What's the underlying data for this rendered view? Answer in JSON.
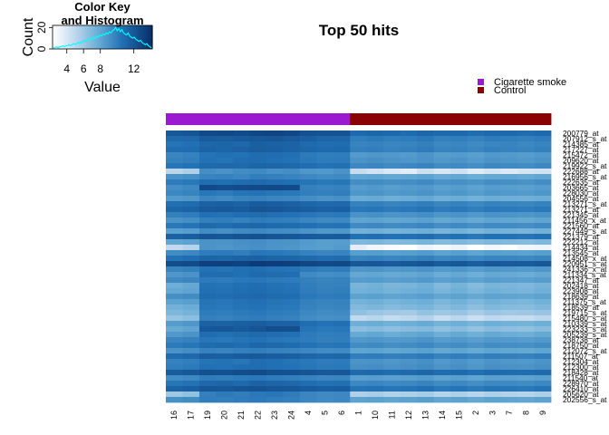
{
  "chart_data": {
    "type": "heatmap",
    "title": "Top 50 hits",
    "color_key": {
      "title_lines": [
        "Color Key",
        "and Histogram"
      ],
      "xlabel": "Value",
      "ylabel": "Count",
      "x_ticks": [
        4,
        6,
        8,
        12
      ],
      "y_ticks": [
        0,
        20
      ],
      "x_range": [
        2.3,
        14.2
      ],
      "y_range": [
        0,
        22
      ],
      "histogram_color": "#00ffff",
      "histogram_counts": [
        1,
        1,
        2,
        1,
        2,
        2,
        3,
        2,
        3,
        3,
        4,
        3,
        4,
        5,
        4,
        5,
        6,
        5,
        7,
        6,
        8,
        7,
        9,
        8,
        10,
        9,
        11,
        10,
        12,
        11,
        13,
        12,
        14,
        13,
        15,
        14,
        16,
        15,
        17,
        18,
        20,
        17,
        19,
        16,
        18,
        15,
        14,
        13,
        15,
        12,
        11,
        10,
        11,
        9,
        8,
        7,
        8,
        6,
        5,
        4,
        5,
        3,
        2,
        1
      ],
      "low_color": "#ffffff",
      "high_color": "#08306b"
    },
    "legend": {
      "placement": "top-right",
      "entries": [
        {
          "label": "Cigarette smoke",
          "color": "#9b19d0"
        },
        {
          "label": "Control",
          "color": "#8b0000"
        }
      ]
    },
    "columns": [
      "16",
      "17",
      "19",
      "20",
      "21",
      "22",
      "23",
      "24",
      "4",
      "5",
      "6",
      "1",
      "10",
      "11",
      "12",
      "13",
      "14",
      "15",
      "2",
      "3",
      "7",
      "8",
      "9"
    ],
    "column_groups": [
      "Cigarette smoke",
      "Cigarette smoke",
      "Cigarette smoke",
      "Cigarette smoke",
      "Cigarette smoke",
      "Cigarette smoke",
      "Cigarette smoke",
      "Cigarette smoke",
      "Cigarette smoke",
      "Cigarette smoke",
      "Cigarette smoke",
      "Control",
      "Control",
      "Control",
      "Control",
      "Control",
      "Control",
      "Control",
      "Control",
      "Control",
      "Control",
      "Control",
      "Control"
    ],
    "rows": [
      "200779_at",
      "207912_s_at",
      "214385_at",
      "217227_at",
      "215472_at",
      "209620_at",
      "219922_s_at",
      "222688_at",
      "216956_s_at",
      "222635_at",
      "203665_at",
      "228030_at",
      "204556_at",
      "213271_s_at",
      "213271_at",
      "221345_at",
      "211456_x_at",
      "221560_at",
      "227449_s_at",
      "221379_at",
      "222212_at",
      "214434_at",
      "213545_at",
      "214508_x_at",
      "220951_s_at",
      "241336_x_at",
      "211334_s_at",
      "221347_at",
      "202418_at",
      "223908_at",
      "218639_at",
      "211375_s_at",
      "218539_at",
      "219715_s_at",
      "215480_s_at",
      "210339_s_at",
      "223233_s_at",
      "205239_s_at",
      "238738_at",
      "218750_at",
      "212072_s_at",
      "211507_at",
      "212304_at",
      "212300_at",
      "218428_at",
      "211540_at",
      "228970_at",
      "226410_at",
      "205620_at",
      "202556_s_at"
    ],
    "values": [
      [
        12.0,
        12.2,
        12.8,
        12.9,
        12.7,
        13.0,
        13.1,
        12.9,
        12.4,
        12.3,
        12.3,
        11.0,
        11.2,
        11.1,
        10.9,
        11.2,
        11.0,
        11.1,
        10.8,
        11.0,
        11.1,
        10.9,
        11.0
      ],
      [
        11.0,
        11.1,
        11.8,
        11.7,
        11.9,
        12.0,
        12.1,
        11.9,
        11.6,
        11.3,
        11.2,
        10.0,
        10.2,
        10.0,
        10.1,
        10.3,
        9.9,
        10.0,
        9.8,
        10.1,
        10.0,
        9.9,
        10.1
      ],
      [
        10.5,
        10.7,
        11.2,
        11.3,
        11.1,
        11.6,
        11.5,
        11.4,
        11.0,
        10.8,
        10.9,
        9.7,
        9.8,
        9.6,
        9.7,
        9.9,
        9.5,
        9.6,
        9.4,
        9.6,
        9.7,
        9.5,
        9.7
      ],
      [
        10.8,
        10.9,
        11.4,
        11.3,
        11.5,
        11.7,
        11.6,
        11.4,
        11.2,
        11.0,
        11.1,
        9.9,
        10.0,
        9.8,
        9.9,
        10.1,
        9.7,
        9.8,
        9.6,
        9.9,
        9.8,
        9.7,
        9.9
      ],
      [
        9.6,
        9.8,
        10.5,
        10.7,
        10.6,
        10.9,
        10.8,
        10.7,
        10.2,
        10.0,
        10.1,
        8.6,
        8.8,
        8.7,
        8.6,
        8.9,
        8.5,
        8.6,
        8.4,
        8.7,
        8.6,
        8.5,
        8.7
      ],
      [
        9.8,
        10.0,
        10.6,
        10.5,
        10.8,
        10.9,
        10.7,
        10.6,
        10.3,
        10.1,
        10.2,
        8.9,
        9.1,
        8.9,
        8.8,
        9.0,
        8.7,
        8.9,
        8.6,
        8.9,
        8.8,
        8.7,
        8.9
      ],
      [
        10.4,
        10.6,
        11.0,
        11.1,
        11.0,
        11.3,
        11.2,
        11.1,
        10.8,
        10.6,
        10.7,
        9.5,
        9.6,
        9.4,
        9.5,
        9.7,
        9.3,
        9.4,
        9.2,
        9.5,
        9.4,
        9.3,
        9.5
      ],
      [
        5.0,
        5.5,
        9.2,
        9.0,
        9.3,
        9.4,
        9.1,
        9.2,
        8.8,
        8.7,
        8.9,
        4.6,
        4.2,
        3.8,
        3.5,
        4.4,
        3.9,
        4.3,
        3.6,
        4.1,
        3.7,
        4.0,
        4.2
      ],
      [
        8.9,
        9.1,
        9.7,
        9.8,
        9.6,
        10.0,
        9.9,
        9.7,
        9.5,
        9.3,
        9.4,
        8.0,
        8.1,
        7.9,
        8.0,
        8.2,
        7.8,
        8.0,
        7.7,
        7.9,
        8.0,
        7.8,
        8.0
      ],
      [
        10.1,
        10.3,
        10.8,
        10.7,
        10.9,
        11.0,
        10.8,
        10.7,
        10.5,
        10.3,
        10.4,
        9.2,
        9.3,
        9.1,
        9.2,
        9.4,
        9.0,
        9.1,
        8.9,
        9.2,
        9.1,
        9.0,
        9.2
      ],
      [
        9.2,
        9.5,
        12.8,
        12.6,
        12.7,
        12.8,
        12.9,
        12.7,
        9.9,
        9.7,
        9.8,
        8.5,
        8.7,
        8.4,
        8.6,
        8.7,
        8.3,
        8.5,
        8.2,
        8.5,
        8.4,
        8.3,
        8.5
      ],
      [
        9.5,
        9.7,
        10.4,
        10.2,
        10.5,
        10.6,
        10.4,
        10.3,
        10.0,
        9.9,
        10.0,
        8.8,
        8.9,
        8.7,
        8.8,
        9.0,
        8.6,
        8.8,
        8.5,
        8.8,
        8.7,
        8.6,
        8.8
      ],
      [
        8.6,
        8.8,
        9.6,
        9.4,
        9.7,
        9.8,
        9.6,
        9.5,
        9.2,
        9.0,
        9.1,
        7.7,
        7.8,
        7.6,
        7.7,
        7.9,
        7.5,
        7.7,
        7.4,
        7.7,
        7.6,
        7.5,
        7.7
      ],
      [
        10.7,
        10.9,
        11.5,
        11.6,
        11.4,
        11.8,
        11.7,
        11.5,
        11.2,
        11.0,
        11.1,
        9.8,
        9.9,
        9.7,
        9.8,
        10.0,
        9.6,
        9.8,
        9.5,
        9.8,
        9.7,
        9.6,
        9.8
      ],
      [
        11.2,
        11.4,
        11.9,
        12.0,
        11.8,
        12.2,
        12.1,
        11.9,
        11.7,
        11.5,
        11.6,
        10.3,
        10.4,
        10.2,
        10.3,
        10.5,
        10.1,
        10.3,
        10.0,
        10.3,
        10.2,
        10.1,
        10.3
      ],
      [
        9.9,
        10.1,
        10.7,
        10.6,
        10.8,
        10.9,
        10.7,
        10.6,
        10.4,
        10.2,
        10.3,
        9.0,
        9.1,
        8.9,
        9.0,
        9.2,
        8.8,
        9.0,
        8.7,
        9.0,
        8.9,
        8.8,
        9.0
      ],
      [
        9.0,
        9.2,
        9.9,
        10.0,
        9.8,
        10.1,
        10.0,
        9.9,
        9.6,
        9.4,
        9.5,
        8.1,
        8.2,
        8.0,
        8.1,
        8.3,
        7.9,
        8.1,
        7.8,
        8.1,
        8.0,
        7.9,
        8.1
      ],
      [
        10.3,
        10.5,
        11.0,
        10.9,
        11.1,
        11.2,
        11.0,
        10.9,
        10.7,
        10.5,
        10.6,
        9.4,
        9.5,
        9.3,
        9.4,
        9.6,
        9.2,
        9.4,
        9.1,
        9.4,
        9.3,
        9.2,
        9.4
      ],
      [
        8.3,
        8.5,
        9.3,
        9.1,
        9.4,
        9.5,
        9.3,
        9.2,
        8.9,
        8.7,
        8.8,
        7.4,
        7.5,
        7.3,
        7.4,
        7.6,
        7.2,
        7.4,
        7.1,
        7.4,
        7.3,
        7.2,
        7.4
      ],
      [
        11.5,
        11.7,
        12.2,
        12.1,
        12.3,
        12.4,
        12.2,
        12.1,
        11.9,
        11.8,
        11.9,
        10.7,
        10.8,
        10.6,
        10.7,
        10.9,
        10.5,
        10.7,
        10.4,
        10.7,
        10.6,
        10.5,
        10.7
      ],
      [
        8.0,
        8.2,
        9.0,
        8.9,
        9.1,
        9.2,
        9.0,
        8.9,
        8.6,
        8.4,
        8.5,
        7.0,
        7.1,
        6.9,
        7.0,
        7.2,
        6.8,
        7.0,
        6.7,
        7.0,
        6.9,
        6.8,
        7.0
      ],
      [
        4.8,
        5.2,
        8.9,
        8.8,
        9.0,
        9.1,
        8.9,
        8.8,
        8.5,
        8.4,
        8.6,
        3.4,
        2.9,
        2.6,
        2.4,
        3.0,
        2.7,
        3.1,
        2.3,
        2.8,
        2.5,
        2.9,
        3.0
      ],
      [
        9.3,
        9.5,
        10.1,
        10.2,
        10.0,
        10.4,
        10.3,
        10.1,
        9.8,
        9.6,
        9.7,
        8.4,
        8.5,
        8.3,
        8.4,
        8.6,
        8.2,
        8.4,
        8.1,
        8.4,
        8.3,
        8.2,
        8.4
      ],
      [
        10.6,
        10.8,
        11.3,
        11.2,
        11.4,
        11.5,
        11.3,
        11.2,
        11.0,
        10.8,
        10.9,
        9.7,
        9.8,
        9.6,
        9.7,
        9.9,
        9.5,
        9.7,
        9.4,
        9.7,
        9.6,
        9.5,
        9.7
      ],
      [
        12.6,
        12.7,
        13.3,
        13.4,
        13.2,
        13.6,
        13.5,
        13.3,
        13.0,
        12.8,
        12.9,
        12.0,
        12.1,
        11.9,
        12.0,
        12.2,
        11.8,
        12.0,
        11.7,
        12.0,
        11.9,
        11.8,
        12.0
      ],
      [
        9.7,
        9.9,
        10.6,
        10.5,
        10.7,
        10.8,
        10.6,
        10.5,
        10.2,
        10.0,
        10.1,
        8.8,
        8.9,
        8.7,
        8.8,
        9.0,
        8.6,
        8.8,
        8.5,
        8.8,
        8.7,
        8.6,
        8.8
      ],
      [
        8.8,
        9.0,
        10.8,
        10.9,
        10.7,
        11.0,
        10.9,
        10.8,
        9.4,
        9.2,
        9.3,
        7.9,
        8.0,
        7.8,
        7.9,
        8.1,
        7.7,
        7.9,
        7.6,
        7.9,
        7.8,
        7.7,
        7.9
      ],
      [
        9.4,
        9.6,
        10.2,
        10.1,
        10.3,
        10.4,
        10.2,
        10.1,
        9.9,
        9.7,
        9.8,
        8.5,
        8.6,
        8.4,
        8.5,
        8.7,
        8.3,
        8.5,
        8.2,
        8.5,
        8.4,
        8.3,
        8.5
      ],
      [
        7.6,
        7.9,
        10.6,
        10.5,
        10.7,
        10.8,
        10.6,
        10.5,
        10.0,
        9.8,
        9.9,
        7.2,
        7.4,
        7.1,
        7.2,
        7.5,
        6.9,
        7.3,
        6.8,
        7.2,
        7.1,
        7.0,
        7.3
      ],
      [
        7.9,
        8.1,
        10.7,
        10.6,
        10.8,
        10.9,
        10.7,
        10.6,
        10.1,
        9.9,
        10.0,
        7.4,
        7.6,
        7.3,
        7.5,
        7.7,
        7.2,
        7.5,
        7.1,
        7.5,
        7.3,
        7.2,
        7.5
      ],
      [
        9.1,
        9.3,
        10.9,
        10.8,
        11.0,
        11.1,
        10.9,
        10.8,
        10.3,
        10.1,
        10.2,
        8.2,
        8.3,
        8.1,
        8.2,
        8.4,
        8.0,
        8.2,
        7.9,
        8.2,
        8.1,
        8.0,
        8.2
      ],
      [
        8.2,
        8.4,
        10.5,
        10.4,
        10.6,
        10.7,
        10.5,
        10.4,
        9.9,
        9.7,
        9.8,
        7.3,
        7.5,
        7.2,
        7.4,
        7.6,
        7.1,
        7.4,
        7.0,
        7.4,
        7.2,
        7.1,
        7.4
      ],
      [
        7.4,
        7.7,
        10.4,
        10.3,
        10.5,
        10.6,
        10.4,
        10.3,
        9.8,
        9.6,
        9.7,
        6.9,
        7.1,
        6.8,
        7.0,
        7.2,
        6.7,
        7.0,
        6.6,
        7.0,
        6.8,
        6.7,
        7.0
      ],
      [
        7.0,
        7.3,
        10.1,
        10.0,
        10.2,
        10.3,
        10.1,
        10.0,
        9.5,
        9.3,
        9.4,
        6.4,
        6.1,
        5.9,
        5.8,
        6.3,
        6.0,
        6.2,
        5.7,
        6.1,
        5.9,
        6.0,
        6.2
      ],
      [
        6.2,
        6.6,
        9.9,
        9.8,
        10.0,
        10.1,
        9.9,
        9.8,
        9.3,
        9.1,
        9.2,
        4.8,
        5.1,
        4.6,
        4.9,
        5.3,
        4.5,
        5.0,
        4.4,
        4.9,
        4.7,
        4.6,
        5.0
      ],
      [
        8.5,
        8.8,
        11.5,
        11.4,
        11.6,
        11.7,
        11.5,
        11.4,
        10.8,
        10.6,
        10.7,
        7.5,
        7.7,
        7.4,
        7.6,
        7.8,
        7.3,
        7.6,
        7.2,
        7.6,
        7.4,
        7.3,
        7.6
      ],
      [
        7.8,
        8.1,
        12.0,
        12.1,
        11.9,
        12.2,
        12.6,
        12.5,
        10.5,
        10.3,
        10.4,
        6.6,
        6.8,
        6.5,
        6.7,
        6.9,
        6.4,
        6.7,
        6.3,
        6.7,
        6.5,
        6.4,
        6.7
      ],
      [
        8.7,
        8.9,
        10.8,
        10.7,
        10.9,
        11.0,
        10.8,
        10.7,
        10.2,
        10.0,
        10.1,
        7.8,
        8.0,
        7.7,
        7.9,
        8.1,
        7.6,
        7.9,
        7.5,
        7.9,
        7.7,
        7.6,
        7.9
      ],
      [
        9.6,
        9.8,
        10.4,
        10.3,
        10.5,
        10.6,
        10.4,
        10.3,
        10.1,
        9.9,
        10.0,
        8.7,
        8.8,
        8.6,
        8.7,
        8.9,
        8.5,
        8.7,
        8.4,
        8.7,
        8.6,
        8.5,
        8.7
      ],
      [
        10.2,
        10.4,
        10.9,
        11.0,
        10.8,
        11.2,
        11.1,
        10.9,
        10.6,
        10.4,
        10.5,
        9.3,
        9.4,
        9.2,
        9.3,
        9.5,
        9.1,
        9.3,
        9.0,
        9.3,
        9.2,
        9.1,
        9.3
      ],
      [
        9.0,
        9.2,
        9.8,
        9.7,
        9.9,
        10.0,
        9.8,
        9.7,
        9.5,
        9.3,
        9.4,
        8.1,
        8.2,
        8.0,
        8.1,
        8.3,
        7.9,
        8.1,
        7.8,
        8.1,
        8.0,
        7.9,
        8.1
      ],
      [
        10.9,
        11.1,
        11.7,
        11.6,
        11.8,
        11.9,
        11.7,
        11.6,
        11.3,
        11.1,
        11.2,
        10.0,
        10.1,
        9.9,
        10.0,
        10.2,
        9.8,
        10.0,
        9.7,
        10.0,
        9.9,
        9.8,
        10.0
      ],
      [
        9.8,
        10.0,
        10.5,
        10.6,
        10.4,
        10.8,
        10.7,
        10.5,
        10.3,
        10.1,
        10.2,
        8.9,
        9.0,
        8.8,
        8.9,
        9.1,
        8.7,
        8.9,
        8.6,
        8.9,
        8.8,
        8.7,
        8.9
      ],
      [
        10.0,
        10.2,
        10.7,
        10.6,
        10.8,
        10.9,
        10.7,
        10.6,
        10.4,
        10.2,
        10.3,
        9.1,
        9.2,
        9.0,
        9.1,
        9.3,
        8.9,
        9.1,
        8.8,
        9.1,
        9.0,
        8.9,
        9.1
      ],
      [
        11.8,
        12.0,
        12.5,
        12.4,
        12.6,
        12.7,
        12.5,
        12.4,
        12.2,
        12.0,
        12.1,
        11.0,
        11.1,
        10.9,
        11.0,
        11.2,
        10.8,
        11.0,
        10.7,
        11.0,
        10.9,
        10.8,
        11.0
      ],
      [
        9.3,
        9.5,
        10.1,
        10.0,
        10.2,
        10.3,
        10.1,
        10.0,
        9.8,
        9.6,
        9.7,
        8.4,
        8.5,
        8.3,
        8.4,
        8.6,
        8.2,
        8.4,
        8.1,
        8.4,
        8.3,
        8.2,
        8.4
      ],
      [
        10.4,
        10.6,
        11.1,
        11.2,
        11.0,
        11.4,
        11.3,
        11.1,
        10.8,
        10.6,
        10.7,
        9.5,
        9.6,
        9.4,
        9.5,
        9.7,
        9.3,
        9.5,
        9.2,
        9.5,
        9.4,
        9.3,
        9.5
      ],
      [
        11.4,
        11.6,
        12.1,
        12.0,
        12.2,
        12.3,
        12.1,
        12.0,
        11.8,
        11.6,
        11.7,
        10.5,
        10.6,
        10.4,
        10.5,
        10.7,
        10.3,
        10.5,
        10.2,
        10.5,
        10.4,
        10.3,
        10.5
      ],
      [
        6.0,
        6.4,
        9.9,
        10.2,
        10.0,
        10.3,
        10.4,
        10.1,
        9.6,
        9.4,
        9.5,
        5.4,
        5.6,
        5.3,
        5.5,
        5.7,
        5.2,
        5.5,
        5.1,
        5.5,
        5.3,
        5.2,
        5.5
      ],
      [
        9.1,
        9.3,
        10.0,
        9.9,
        10.1,
        10.2,
        10.0,
        9.9,
        9.6,
        9.4,
        9.5,
        8.2,
        8.3,
        8.1,
        8.2,
        8.4,
        8.0,
        8.2,
        7.9,
        8.2,
        8.1,
        8.0,
        8.2
      ]
    ]
  }
}
